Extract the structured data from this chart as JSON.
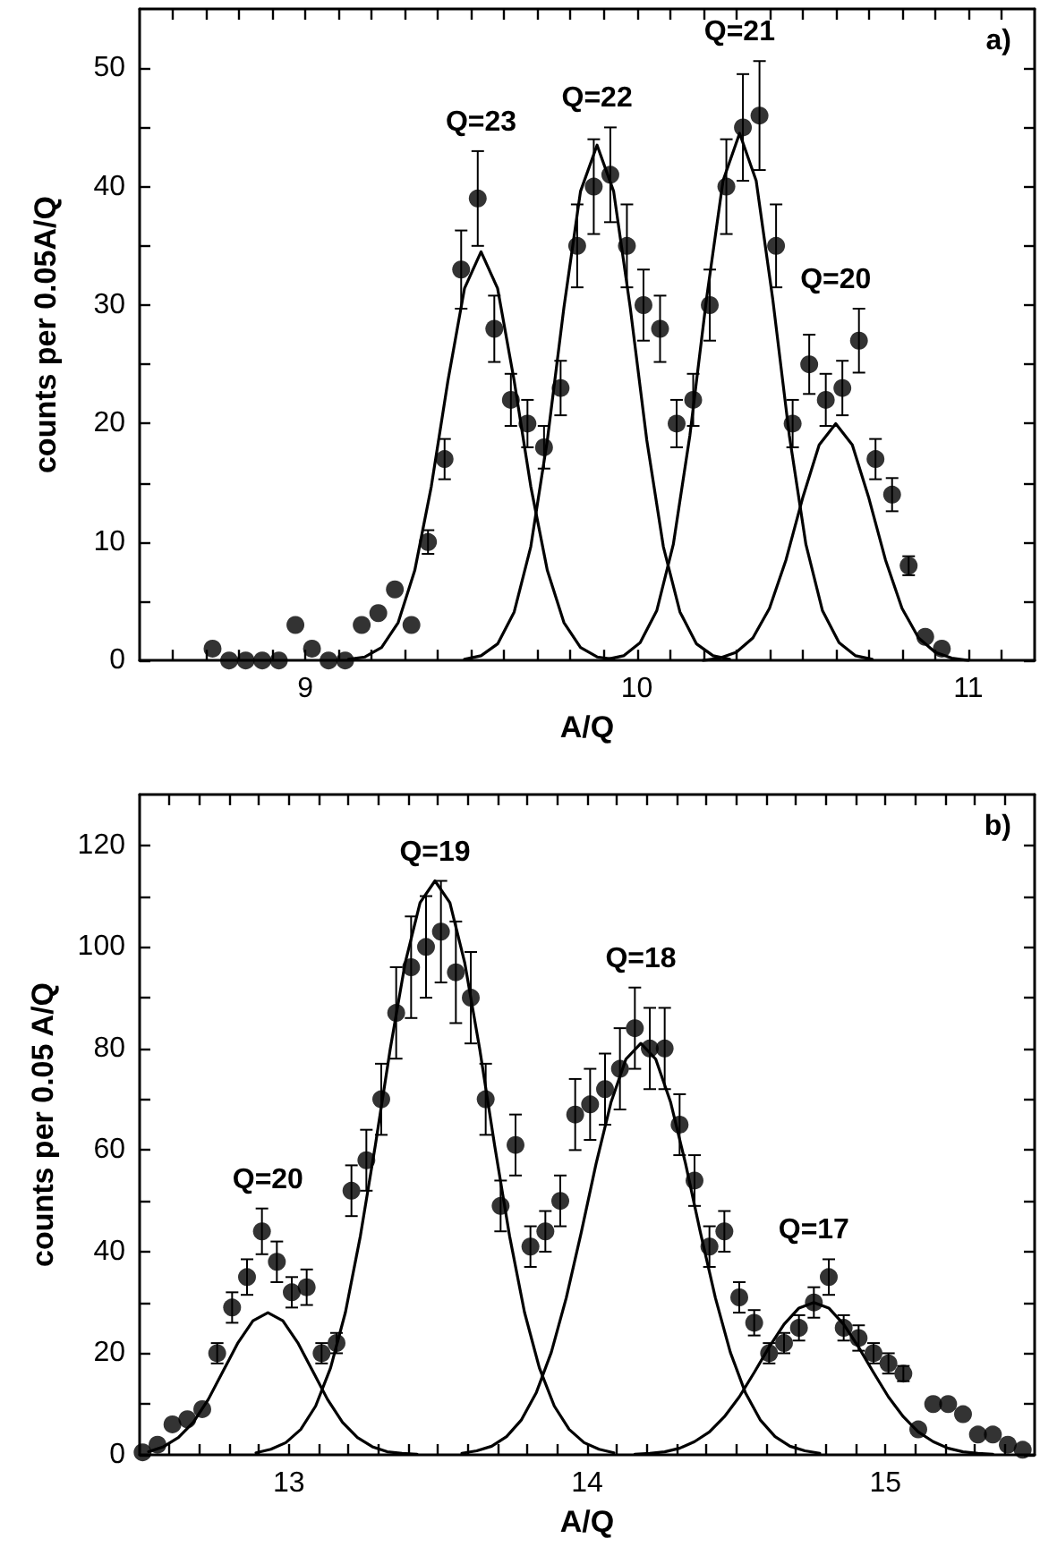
{
  "chart_data": [
    {
      "type": "scatter",
      "xlabel": "A/Q",
      "ylabel": "counts per 0.05A/Q",
      "xlim": [
        8.5,
        11.2
      ],
      "ylim": [
        0,
        55
      ],
      "xticks": [
        {
          "value": 8.6,
          "label": null
        },
        {
          "value": 8.7,
          "label": null
        },
        {
          "value": 8.8,
          "label": null
        },
        {
          "value": 8.9,
          "label": null
        },
        9,
        {
          "value": 9.1,
          "label": null
        },
        {
          "value": 9.2,
          "label": null
        },
        {
          "value": 9.3,
          "label": null
        },
        {
          "value": 9.4,
          "label": null
        },
        {
          "value": 9.5,
          "label": null
        },
        {
          "value": 9.6,
          "label": null
        },
        {
          "value": 9.7,
          "label": null
        },
        {
          "value": 9.8,
          "label": null
        },
        {
          "value": 9.9,
          "label": null
        },
        10,
        {
          "value": 10.1,
          "label": null
        },
        {
          "value": 10.2,
          "label": null
        },
        {
          "value": 10.3,
          "label": null
        },
        {
          "value": 10.4,
          "label": null
        },
        {
          "value": 10.5,
          "label": null
        },
        {
          "value": 10.6,
          "label": null
        },
        {
          "value": 10.7,
          "label": null
        },
        {
          "value": 10.8,
          "label": null
        },
        {
          "value": 10.9,
          "label": null
        },
        11,
        {
          "value": 11.1,
          "label": null
        }
      ],
      "yticks": [
        0,
        {
          "value": 5,
          "label": null
        },
        10,
        {
          "value": 15,
          "label": null
        },
        20,
        {
          "value": 25,
          "label": null
        },
        30,
        {
          "value": 35,
          "label": null
        },
        40,
        {
          "value": 45,
          "label": null
        },
        50
      ],
      "grid": false,
      "marker": "circle",
      "line_style": "solid",
      "annotations": [
        "a)",
        "Q=23",
        "Q=22",
        "Q=21",
        "Q=20"
      ],
      "series": [
        {
          "color": "#000000",
          "x": [
            8.72,
            8.77,
            8.82,
            8.87,
            8.92,
            8.97,
            9.02,
            9.07,
            9.12,
            9.17,
            9.22,
            9.27,
            9.32,
            9.37,
            9.42,
            9.47,
            9.52,
            9.57,
            9.62,
            9.67,
            9.72,
            9.77,
            9.82,
            9.87,
            9.92,
            9.97,
            10.02,
            10.07,
            10.12,
            10.17,
            10.22,
            10.27,
            10.32,
            10.37,
            10.42,
            10.47,
            10.52,
            10.57,
            10.62,
            10.67,
            10.72,
            10.77,
            10.82,
            10.87,
            10.92
          ],
          "values": [
            1,
            0,
            0,
            0,
            0,
            3,
            1,
            0,
            0,
            3,
            4,
            6,
            3,
            10,
            17,
            33,
            39,
            28,
            22,
            20,
            18,
            23,
            35,
            40,
            41,
            35,
            30,
            28,
            20,
            22,
            30,
            40,
            45,
            46,
            35,
            20,
            25,
            22,
            23,
            27,
            17,
            14,
            8,
            2,
            1
          ],
          "errors": [
            null,
            null,
            null,
            null,
            null,
            null,
            null,
            null,
            null,
            null,
            null,
            null,
            null,
            1,
            1.7,
            3.3,
            4,
            2.8,
            2.2,
            2,
            1.8,
            2.3,
            3.5,
            4,
            4,
            3.5,
            3,
            2.8,
            2,
            2.2,
            3,
            4,
            4.5,
            4.6,
            3.5,
            2,
            2.5,
            2.2,
            2.3,
            2.7,
            1.7,
            1.4,
            0.8,
            null,
            null
          ]
        },
        {
          "type": "line",
          "marker": "none",
          "color": "#000000",
          "x": [
            9.13,
            9.18,
            9.23,
            9.28,
            9.33,
            9.38,
            9.43,
            9.48,
            9.53,
            9.58,
            9.63,
            9.68,
            9.73,
            9.78,
            9.83,
            9.88,
            9.93
          ],
          "values": [
            0.1,
            0.3,
            1.1,
            3.2,
            7.6,
            14.7,
            23.6,
            31.4,
            34.5,
            31.4,
            23.6,
            14.7,
            7.6,
            3.2,
            1.1,
            0.3,
            0.1
          ]
        },
        {
          "type": "line",
          "marker": "none",
          "color": "#000000",
          "x": [
            9.48,
            9.53,
            9.58,
            9.63,
            9.68,
            9.73,
            9.78,
            9.83,
            9.88,
            9.93,
            9.98,
            10.03,
            10.08,
            10.13,
            10.18,
            10.23,
            10.28
          ],
          "values": [
            0.1,
            0.4,
            1.4,
            4.1,
            9.6,
            18.6,
            29.8,
            39.6,
            43.5,
            39.6,
            29.8,
            18.6,
            9.6,
            4.1,
            1.4,
            0.4,
            0.1
          ]
        },
        {
          "type": "line",
          "marker": "none",
          "color": "#000000",
          "x": [
            9.91,
            9.96,
            10.01,
            10.06,
            10.11,
            10.16,
            10.21,
            10.26,
            10.31,
            10.36,
            10.41,
            10.46,
            10.51,
            10.56,
            10.61,
            10.66,
            10.71
          ],
          "values": [
            0.1,
            0.4,
            1.5,
            4.2,
            9.8,
            19.0,
            30.5,
            40.5,
            44.5,
            40.5,
            30.5,
            19.0,
            9.8,
            4.2,
            1.5,
            0.4,
            0.1
          ]
        },
        {
          "type": "line",
          "marker": "none",
          "color": "#000000",
          "x": [
            10.2,
            10.25,
            10.3,
            10.35,
            10.4,
            10.45,
            10.5,
            10.55,
            10.6,
            10.65,
            10.7,
            10.75,
            10.8,
            10.85,
            10.9,
            10.95,
            11.0
          ],
          "values": [
            0,
            0.2,
            0.7,
            1.9,
            4.4,
            8.5,
            13.7,
            18.2,
            20,
            18.2,
            13.7,
            8.5,
            4.4,
            1.9,
            0.7,
            0.2,
            0
          ]
        }
      ]
    },
    {
      "type": "scatter",
      "xlabel": "A/Q",
      "ylabel": "counts per 0.05 A/Q",
      "xlim": [
        12.5,
        15.5
      ],
      "ylim": [
        0,
        130
      ],
      "xticks": [
        {
          "value": 12.6,
          "label": null
        },
        {
          "value": 12.7,
          "label": null
        },
        {
          "value": 12.8,
          "label": null
        },
        {
          "value": 12.9,
          "label": null
        },
        13,
        {
          "value": 13.1,
          "label": null
        },
        {
          "value": 13.2,
          "label": null
        },
        {
          "value": 13.3,
          "label": null
        },
        {
          "value": 13.4,
          "label": null
        },
        {
          "value": 13.5,
          "label": null
        },
        {
          "value": 13.6,
          "label": null
        },
        {
          "value": 13.7,
          "label": null
        },
        {
          "value": 13.8,
          "label": null
        },
        {
          "value": 13.9,
          "label": null
        },
        14,
        {
          "value": 14.1,
          "label": null
        },
        {
          "value": 14.2,
          "label": null
        },
        {
          "value": 14.3,
          "label": null
        },
        {
          "value": 14.4,
          "label": null
        },
        {
          "value": 14.5,
          "label": null
        },
        {
          "value": 14.6,
          "label": null
        },
        {
          "value": 14.7,
          "label": null
        },
        {
          "value": 14.8,
          "label": null
        },
        {
          "value": 14.9,
          "label": null
        },
        15,
        {
          "value": 15.1,
          "label": null
        },
        {
          "value": 15.2,
          "label": null
        },
        {
          "value": 15.3,
          "label": null
        },
        {
          "value": 15.4,
          "label": null
        }
      ],
      "yticks": [
        0,
        {
          "value": 10,
          "label": null
        },
        20,
        {
          "value": 30,
          "label": null
        },
        40,
        {
          "value": 50,
          "label": null
        },
        60,
        {
          "value": 70,
          "label": null
        },
        80,
        {
          "value": 90,
          "label": null
        },
        100,
        {
          "value": 110,
          "label": null
        },
        120
      ],
      "grid": false,
      "marker": "circle",
      "line_style": "solid",
      "annotations": [
        "b)",
        "Q=20",
        "Q=19",
        "Q=18",
        "Q=17"
      ],
      "series": [
        {
          "color": "#000000",
          "x": [
            12.51,
            12.56,
            12.61,
            12.66,
            12.71,
            12.76,
            12.81,
            12.86,
            12.91,
            12.96,
            13.01,
            13.06,
            13.11,
            13.16,
            13.21,
            13.26,
            13.31,
            13.36,
            13.41,
            13.46,
            13.51,
            13.56,
            13.61,
            13.66,
            13.71,
            13.76,
            13.81,
            13.86,
            13.91,
            13.96,
            14.01,
            14.06,
            14.11,
            14.16,
            14.21,
            14.26,
            14.31,
            14.36,
            14.41,
            14.46,
            14.51,
            14.56,
            14.61,
            14.66,
            14.71,
            14.76,
            14.81,
            14.86,
            14.91,
            14.96,
            15.01,
            15.06,
            15.11,
            15.16,
            15.21,
            15.26,
            15.31,
            15.36,
            15.41,
            15.46
          ],
          "values": [
            0.5,
            2,
            6,
            7,
            9,
            20,
            29,
            35,
            44,
            38,
            32,
            33,
            20,
            22,
            52,
            58,
            70,
            87,
            96,
            100,
            103,
            95,
            90,
            70,
            49,
            61,
            41,
            44,
            50,
            67,
            69,
            72,
            76,
            84,
            80,
            80,
            65,
            54,
            41,
            44,
            31,
            26,
            20,
            22,
            25,
            30,
            35,
            25,
            23,
            20,
            18,
            16,
            5,
            10,
            10,
            8,
            4,
            4,
            2,
            1
          ],
          "errors": [
            null,
            null,
            null,
            null,
            null,
            2,
            3,
            3.5,
            4.5,
            4,
            3,
            3.5,
            2,
            2,
            5,
            6,
            7,
            9,
            10,
            10,
            10,
            10,
            9,
            7,
            5,
            6,
            4,
            4,
            5,
            7,
            7,
            7,
            8,
            8,
            8,
            8,
            6,
            5,
            4,
            4,
            3,
            2.5,
            2,
            2,
            2.5,
            3,
            3.5,
            2.5,
            2.5,
            2,
            2,
            1.5,
            null,
            null,
            null,
            null,
            null,
            null,
            null,
            null
          ]
        },
        {
          "type": "line",
          "marker": "none",
          "color": "#000000",
          "x": [
            12.53,
            12.58,
            12.63,
            12.68,
            12.73,
            12.78,
            12.83,
            12.88,
            12.93,
            12.98,
            13.03,
            13.08,
            13.13,
            13.18,
            13.23,
            13.28,
            13.33,
            13.38,
            13.43
          ],
          "values": [
            0.6,
            1.6,
            3.4,
            6.4,
            10.9,
            16.5,
            22.1,
            26.4,
            28,
            26.4,
            22.1,
            16.5,
            10.9,
            6.4,
            3.4,
            1.6,
            0.6,
            0.3,
            0.1
          ]
        },
        {
          "type": "line",
          "marker": "none",
          "color": "#000000",
          "x": [
            12.89,
            12.94,
            12.99,
            13.04,
            13.09,
            13.14,
            13.19,
            13.24,
            13.29,
            13.34,
            13.39,
            13.44,
            13.49,
            13.54,
            13.59,
            13.64,
            13.69,
            13.74,
            13.79,
            13.84,
            13.89,
            13.94,
            13.99,
            14.04,
            14.09
          ],
          "values": [
            0.4,
            1.1,
            2.4,
            5.0,
            9.6,
            17.1,
            28.1,
            43.1,
            60.9,
            79.9,
            96.8,
            108.7,
            113,
            108.7,
            96.8,
            79.9,
            60.9,
            43.1,
            28.1,
            17.1,
            9.6,
            5.0,
            2.4,
            1.1,
            0.4
          ]
        },
        {
          "type": "line",
          "marker": "none",
          "color": "#000000",
          "x": [
            13.58,
            13.63,
            13.68,
            13.73,
            13.78,
            13.83,
            13.88,
            13.93,
            13.98,
            14.03,
            14.08,
            14.13,
            14.18,
            14.23,
            14.28,
            14.33,
            14.38,
            14.43,
            14.48,
            14.53,
            14.58,
            14.63,
            14.68,
            14.73,
            14.78
          ],
          "values": [
            0.3,
            0.8,
            1.7,
            3.6,
            6.9,
            12.3,
            20.2,
            30.9,
            43.7,
            57.3,
            69.4,
            77.9,
            81,
            77.9,
            69.4,
            57.3,
            43.7,
            30.9,
            20.2,
            12.3,
            6.9,
            3.6,
            1.7,
            0.8,
            0.3
          ]
        },
        {
          "type": "line",
          "marker": "none",
          "color": "#000000",
          "x": [
            14.16,
            14.21,
            14.26,
            14.31,
            14.36,
            14.41,
            14.46,
            14.51,
            14.56,
            14.61,
            14.66,
            14.71,
            14.76,
            14.81,
            14.86,
            14.91,
            14.96,
            15.01,
            15.06,
            15.11,
            15.16,
            15.21,
            15.26,
            15.31,
            15.36
          ],
          "values": [
            0.1,
            0.3,
            0.6,
            1.3,
            2.6,
            4.5,
            7.5,
            11.4,
            16.2,
            21.2,
            25.7,
            28.9,
            30,
            28.9,
            25.7,
            21.2,
            16.2,
            11.4,
            7.5,
            4.5,
            2.6,
            1.3,
            0.6,
            0.3,
            0.1
          ]
        }
      ]
    }
  ]
}
